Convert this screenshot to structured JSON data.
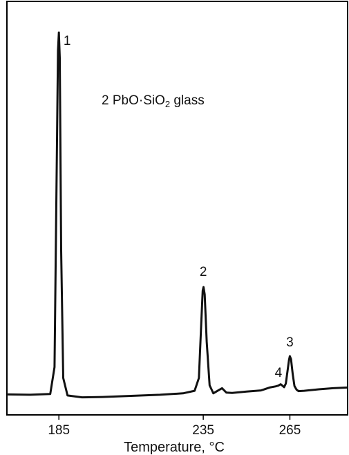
{
  "chart_data": {
    "type": "line",
    "title": "",
    "xlabel": "Temperature, °C",
    "ylabel": "",
    "xlim": [
      167,
      285
    ],
    "ylim": [
      0,
      100
    ],
    "x_ticks": [
      "185",
      "235",
      "265"
    ],
    "annotation": {
      "text_pre": "2 PbO·SiO",
      "sub": "2",
      "text_post": " glass"
    },
    "peaks": [
      {
        "label": "1",
        "x": 185,
        "y": 100
      },
      {
        "label": "2",
        "x": 235,
        "y": 30
      },
      {
        "label": "3",
        "x": 265,
        "y": 11
      },
      {
        "label": "4",
        "x": 262,
        "y": 3
      }
    ],
    "series": [
      {
        "x": [
          167,
          175,
          182,
          183.5,
          184.2,
          184.7,
          185,
          185.3,
          185.8,
          186.5,
          188,
          193,
          200,
          210,
          220,
          228,
          232,
          233.5,
          234.3,
          234.8,
          235.1,
          235.5,
          236.2,
          237.2,
          238.5,
          240,
          241.5,
          243,
          245,
          250,
          255,
          258,
          260,
          261,
          261.8,
          262.4,
          263,
          263.6,
          264.2,
          264.7,
          265,
          265.4,
          266,
          266.6,
          267.3,
          268,
          270,
          275,
          280,
          285
        ],
        "y": [
          0.5,
          0.4,
          0.6,
          8,
          60,
          95,
          100,
          93,
          40,
          5,
          0.2,
          -0.3,
          -0.2,
          0.1,
          0.4,
          0.8,
          1.5,
          5,
          20,
          29,
          30,
          28,
          15,
          3,
          0.8,
          1.5,
          2.2,
          1.0,
          0.9,
          1.3,
          1.6,
          2.4,
          2.7,
          2.9,
          3.3,
          2.9,
          2.5,
          3.5,
          7,
          10,
          11,
          10.2,
          6,
          2.8,
          1.8,
          1.4,
          1.5,
          1.9,
          2.2,
          2.4
        ]
      }
    ]
  }
}
